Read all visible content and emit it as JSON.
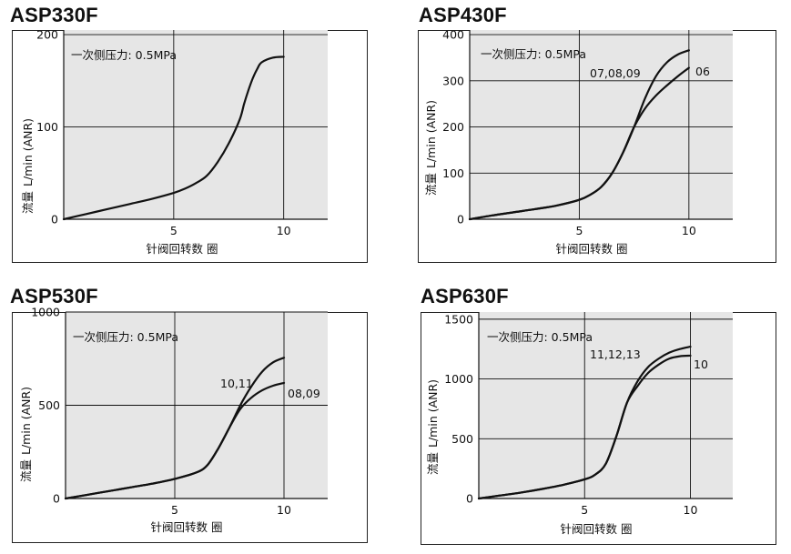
{
  "page": {
    "charts": [
      {
        "title": "ASP330F",
        "pressure_note": "一次侧压力: 0.5MPa",
        "ylabel_main": "L/min (ANR)",
        "ylabel_sub": "流量",
        "xlabel": "针阀回转数  圈",
        "x_ticks": [
          "5",
          "10"
        ],
        "y_ticks": [
          "0",
          "100",
          "200"
        ]
      },
      {
        "title": "ASP430F",
        "pressure_note": "一次侧压力: 0.5MPa",
        "ylabel_main": "L/min (ANR)",
        "ylabel_sub": "流量",
        "xlabel": "针阀回转数  圈",
        "x_ticks": [
          "5",
          "10"
        ],
        "y_ticks": [
          "0",
          "100",
          "200",
          "300",
          "400"
        ]
      },
      {
        "title": "ASP530F",
        "pressure_note": "一次侧压力: 0.5MPa",
        "ylabel_main": "L/min (ANR)",
        "ylabel_sub": "流量",
        "xlabel": "针阀回转数  圈",
        "x_ticks": [
          "5",
          "10"
        ],
        "y_ticks": [
          "0",
          "500",
          "1000"
        ]
      },
      {
        "title": "ASP630F",
        "pressure_note": "一次侧压力: 0.5MPa",
        "ylabel_main": "L/min (ANR)",
        "ylabel_sub": "流量",
        "xlabel": "针阀回转数  圈",
        "x_ticks": [
          "5",
          "10"
        ],
        "y_ticks": [
          "0",
          "500",
          "1000",
          "1500"
        ]
      }
    ]
  },
  "chart_data": [
    {
      "type": "line",
      "title": "ASP330F",
      "xlabel": "针阀回转数  圈",
      "ylabel": "流量 L/min (ANR)",
      "xlim": [
        0,
        12
      ],
      "ylim": [
        0,
        205
      ],
      "x_ticks": [
        5,
        10
      ],
      "y_ticks": [
        0,
        100,
        200
      ],
      "grid": true,
      "annotations": [
        "一次侧压力: 0.5MPa"
      ],
      "series": [
        {
          "x": [
            0,
            1,
            2,
            3,
            4,
            5,
            5.5,
            6,
            6.5,
            7,
            7.5,
            8,
            8.2,
            8.4,
            8.6,
            8.8,
            9,
            9.5,
            10
          ],
          "y": [
            0,
            5.5,
            11,
            16.5,
            22,
            28.5,
            33,
            39,
            47,
            62,
            82,
            108,
            125,
            140,
            153,
            163,
            170,
            175,
            176
          ]
        }
      ]
    },
    {
      "type": "line",
      "title": "ASP430F",
      "xlabel": "针阀回转数  圈",
      "ylabel": "流量 L/min (ANR)",
      "xlim": [
        0,
        12
      ],
      "ylim": [
        0,
        410
      ],
      "x_ticks": [
        5,
        10
      ],
      "y_ticks": [
        0,
        100,
        200,
        300,
        400
      ],
      "grid": true,
      "annotations": [
        "一次侧压力: 0.5MPa"
      ],
      "series": [
        {
          "name": "07,08,09",
          "x": [
            0,
            1,
            2,
            3,
            4,
            5,
            5.5,
            6,
            6.5,
            7,
            7.5,
            8,
            8.5,
            9,
            9.5,
            10
          ],
          "y": [
            0,
            8,
            15,
            22,
            30,
            42,
            53,
            70,
            100,
            145,
            200,
            262,
            310,
            340,
            357,
            366
          ]
        },
        {
          "name": "06",
          "x": [
            0,
            1,
            2,
            3,
            4,
            5,
            5.5,
            6,
            6.5,
            7,
            7.5,
            8,
            8.5,
            9,
            9.5,
            10
          ],
          "y": [
            0,
            8,
            15,
            22,
            30,
            42,
            53,
            70,
            100,
            145,
            200,
            240,
            268,
            290,
            310,
            328
          ]
        }
      ]
    },
    {
      "type": "line",
      "title": "ASP530F",
      "xlabel": "针阀回转数  圈",
      "ylabel": "流量 L/min (ANR)",
      "xlim": [
        0,
        12
      ],
      "ylim": [
        0,
        1000
      ],
      "x_ticks": [
        5,
        10
      ],
      "y_ticks": [
        0,
        500,
        1000
      ],
      "grid": true,
      "annotations": [
        "一次侧压力: 0.5MPa"
      ],
      "series": [
        {
          "name": "10,11",
          "x": [
            0,
            1,
            2,
            3,
            4,
            5,
            6,
            6.5,
            7,
            7.5,
            8,
            8.5,
            9,
            9.5,
            10
          ],
          "y": [
            0,
            20,
            40,
            60,
            80,
            105,
            140,
            180,
            270,
            380,
            500,
            600,
            680,
            730,
            755
          ]
        },
        {
          "name": "08,09",
          "x": [
            0,
            1,
            2,
            3,
            4,
            5,
            6,
            6.5,
            7,
            7.5,
            8,
            8.5,
            9,
            9.5,
            10
          ],
          "y": [
            0,
            20,
            40,
            60,
            80,
            105,
            140,
            180,
            270,
            380,
            480,
            540,
            580,
            605,
            620
          ]
        }
      ]
    },
    {
      "type": "line",
      "title": "ASP630F",
      "xlabel": "针阀回转数  圈",
      "ylabel": "流量 L/min (ANR)",
      "xlim": [
        0,
        12
      ],
      "ylim": [
        0,
        1560
      ],
      "x_ticks": [
        5,
        10
      ],
      "y_ticks": [
        0,
        500,
        1000,
        1500
      ],
      "grid": true,
      "annotations": [
        "一次侧压力: 0.5MPa"
      ],
      "series": [
        {
          "name": "11,12,13",
          "x": [
            0,
            1,
            2,
            3,
            4,
            5,
            5.5,
            6,
            6.5,
            7,
            7.5,
            8,
            8.5,
            9,
            9.5,
            10
          ],
          "y": [
            0,
            25,
            50,
            80,
            115,
            160,
            200,
            290,
            520,
            800,
            980,
            1100,
            1170,
            1220,
            1250,
            1270
          ]
        },
        {
          "name": "10",
          "x": [
            0,
            1,
            2,
            3,
            4,
            5,
            5.5,
            6,
            6.5,
            7,
            7.5,
            8,
            8.5,
            9,
            9.5,
            10
          ],
          "y": [
            0,
            25,
            50,
            80,
            115,
            160,
            200,
            290,
            520,
            800,
            940,
            1050,
            1120,
            1170,
            1190,
            1195
          ]
        }
      ]
    }
  ]
}
